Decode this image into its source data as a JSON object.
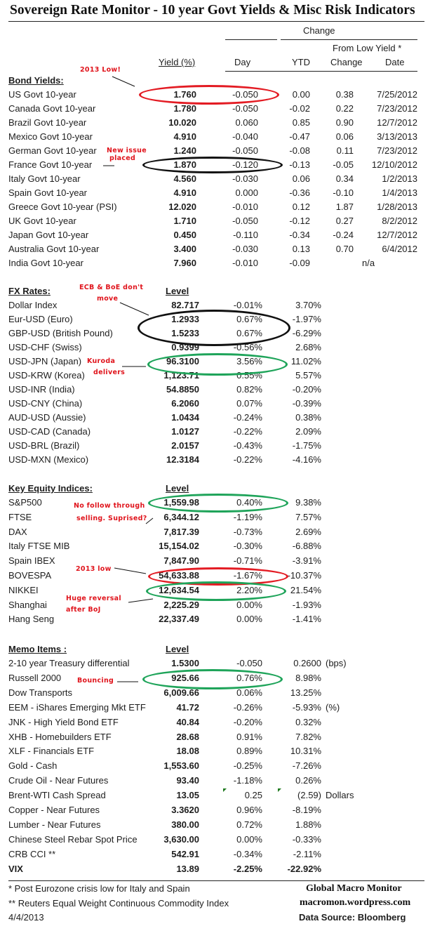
{
  "title": "Sovereign Rate Monitor - 10 year Govt Yields & Misc Risk Indicators",
  "header": {
    "change": "Change",
    "from_low_yield": "From Low Yield  *",
    "yield_pct": "Yield (%)",
    "day": "Day",
    "ytd": "YTD",
    "change_col": "Change",
    "date": "Date"
  },
  "bond_yields": {
    "heading": "Bond Yields:",
    "rows": [
      {
        "name": "US Govt 10-year",
        "yield": "1.760",
        "day": "-0.050",
        "ytd": "0.00",
        "low_change": "0.38",
        "low_date": "7/25/2012"
      },
      {
        "name": "Canada Govt 10-year",
        "yield": "1.780",
        "day": "-0.050",
        "ytd": "-0.02",
        "low_change": "0.22",
        "low_date": "7/23/2012"
      },
      {
        "name": "Brazil Govt 10-year",
        "yield": "10.020",
        "day": "0.060",
        "ytd": "0.85",
        "low_change": "0.90",
        "low_date": "12/7/2012"
      },
      {
        "name": "Mexico Govt 10-year",
        "yield": "4.910",
        "day": "-0.040",
        "ytd": "-0.47",
        "low_change": "0.06",
        "low_date": "3/13/2013"
      },
      {
        "name": "German Govt 10-year",
        "yield": "1.240",
        "day": "-0.050",
        "ytd": "-0.08",
        "low_change": "0.11",
        "low_date": "7/23/2012"
      },
      {
        "name": "France Govt 10-year",
        "yield": "1.870",
        "day": "-0.120",
        "ytd": "-0.13",
        "low_change": "-0.05",
        "low_date": "12/10/2012"
      },
      {
        "name": "Italy Govt 10-year",
        "yield": "4.560",
        "day": "-0.030",
        "ytd": "0.06",
        "low_change": "0.34",
        "low_date": "1/2/2013"
      },
      {
        "name": "Spain Govt 10-year",
        "yield": "4.910",
        "day": "0.000",
        "ytd": "-0.36",
        "low_change": "-0.10",
        "low_date": "1/4/2013"
      },
      {
        "name": "Greece Govt 10-year (PSI)",
        "yield": "12.020",
        "day": "-0.010",
        "ytd": "0.12",
        "low_change": "1.87",
        "low_date": "1/28/2013"
      },
      {
        "name": "UK Govt 10-year",
        "yield": "1.710",
        "day": "-0.050",
        "ytd": "-0.12",
        "low_change": "0.27",
        "low_date": "8/2/2012"
      },
      {
        "name": "Japan Govt 10-year",
        "yield": "0.450",
        "day": "-0.110",
        "ytd": "-0.34",
        "low_change": "-0.24",
        "low_date": "12/7/2012"
      },
      {
        "name": "Australia Govt 10-year",
        "yield": "3.400",
        "day": "-0.030",
        "ytd": "0.13",
        "low_change": "0.70",
        "low_date": "6/4/2012"
      },
      {
        "name": "India Govt 10-year",
        "yield": "7.960",
        "day": "-0.010",
        "ytd": "-0.09",
        "low_change": "",
        "low_date": "n/a"
      }
    ]
  },
  "fx_rates": {
    "heading": "FX Rates:",
    "level_label": "Level",
    "rows": [
      {
        "name": "Dollar Index",
        "level": "82.717",
        "day": "-0.01%",
        "ytd": "3.70%"
      },
      {
        "name": "Eur-USD (Euro)",
        "level": "1.2933",
        "day": "0.67%",
        "ytd": "-1.97%"
      },
      {
        "name": "GBP-USD (British Pound)",
        "level": "1.5233",
        "day": "0.67%",
        "ytd": "-6.29%"
      },
      {
        "name": "USD-CHF (Swiss)",
        "level": "0.9399",
        "day": "-0.56%",
        "ytd": "2.68%"
      },
      {
        "name": "USD-JPN (Japan)",
        "level": "96.3100",
        "day": "3.56%",
        "ytd": "11.02%"
      },
      {
        "name": "USD-KRW (Korea)",
        "level": "1,123.71",
        "day": "0.55%",
        "ytd": "5.57%"
      },
      {
        "name": "USD-INR (India)",
        "level": "54.8850",
        "day": "0.82%",
        "ytd": "-0.20%"
      },
      {
        "name": "USD-CNY (China)",
        "level": "6.2060",
        "day": "0.07%",
        "ytd": "-0.39%"
      },
      {
        "name": "AUD-USD (Aussie)",
        "level": "1.0434",
        "day": "-0.24%",
        "ytd": "0.38%"
      },
      {
        "name": "USD-CAD (Canada)",
        "level": "1.0127",
        "day": "-0.22%",
        "ytd": "2.09%"
      },
      {
        "name": "USD-BRL (Brazil)",
        "level": "2.0157",
        "day": "-0.43%",
        "ytd": "-1.75%"
      },
      {
        "name": "USD-MXN  (Mexico)",
        "level": "12.3184",
        "day": "-0.22%",
        "ytd": "-4.16%"
      }
    ]
  },
  "equity": {
    "heading": "Key Equity Indices:",
    "level_label": "Level",
    "rows": [
      {
        "name": "S&P500",
        "level": "1,559.98",
        "day": "0.40%",
        "ytd": "9.38%"
      },
      {
        "name": "FTSE",
        "level": "6,344.12",
        "day": "-1.19%",
        "ytd": "7.57%"
      },
      {
        "name": "DAX",
        "level": "7,817.39",
        "day": "-0.73%",
        "ytd": "2.69%"
      },
      {
        "name": "Italy FTSE MIB",
        "level": "15,154.02",
        "day": "-0.30%",
        "ytd": "-6.88%"
      },
      {
        "name": "Spain IBEX",
        "level": "7,847.90",
        "day": "-0.71%",
        "ytd": "-3.91%"
      },
      {
        "name": "BOVESPA",
        "level": "54,633.88",
        "day": "-1.67%",
        "ytd": "-10.37%"
      },
      {
        "name": "NIKKEI",
        "level": "12,634.54",
        "day": "2.20%",
        "ytd": "21.54%"
      },
      {
        "name": "Shanghai",
        "level": "2,225.29",
        "day": "0.00%",
        "ytd": "-1.93%"
      },
      {
        "name": "Hang Seng",
        "level": "22,337.49",
        "day": "0.00%",
        "ytd": "-1.41%"
      }
    ]
  },
  "memo": {
    "heading": "Memo Items :",
    "level_label": "Level",
    "rows": [
      {
        "name": "2-10 year Treasury differential",
        "level": "1.5300",
        "day": "-0.050",
        "ytd": "0.2600",
        "unit": "(bps)"
      },
      {
        "name": "Russell 2000",
        "level": "925.66",
        "day": "0.76%",
        "ytd": "8.98%",
        "unit": ""
      },
      {
        "name": "Dow Transports",
        "level": "6,009.66",
        "day": "0.06%",
        "ytd": "13.25%",
        "unit": ""
      },
      {
        "name": "EEM - iShares Emerging Mkt ETF",
        "level": "41.72",
        "day": "-0.26%",
        "ytd": "-5.93%",
        "unit": "(%)"
      },
      {
        "name": "JNK - High Yield Bond ETF",
        "level": "40.84",
        "day": "-0.20%",
        "ytd": "0.32%",
        "unit": ""
      },
      {
        "name": "XHB - Homebuilders ETF",
        "level": "28.68",
        "day": "0.91%",
        "ytd": "7.82%",
        "unit": ""
      },
      {
        "name": "XLF - Financials ETF",
        "level": "18.08",
        "day": "0.89%",
        "ytd": "10.31%",
        "unit": ""
      },
      {
        "name": "Gold - Cash",
        "level": "1,553.60",
        "day": "-0.25%",
        "ytd": "-7.26%",
        "unit": ""
      },
      {
        "name": "Crude Oil - Near Futures",
        "level": "93.40",
        "day": "-1.18%",
        "ytd": "0.26%",
        "unit": ""
      },
      {
        "name": "Brent-WTI Cash Spread",
        "level": "13.05",
        "day": "0.25",
        "ytd": "(2.59)",
        "unit": "Dollars"
      },
      {
        "name": "Copper - Near Futures",
        "level": "3.3620",
        "day": "0.96%",
        "ytd": "-8.19%",
        "unit": ""
      },
      {
        "name": "Lumber - Near Futures",
        "level": "380.00",
        "day": "0.72%",
        "ytd": "1.88%",
        "unit": ""
      },
      {
        "name": "Chinese Steel Rebar Spot Price",
        "level": "3,630.00",
        "day": "0.00%",
        "ytd": "-0.33%",
        "unit": ""
      },
      {
        "name": "CRB CCI **",
        "level": "542.91",
        "day": "-0.34%",
        "ytd": "-2.11%",
        "unit": ""
      },
      {
        "name": "VIX",
        "level": "13.89",
        "day": "-2.25%",
        "ytd": "-22.92%",
        "unit": ""
      }
    ]
  },
  "annotations": {
    "low_2013": "2013 Low!",
    "new_issue_1": "New issue",
    "new_issue_2": "placed",
    "ecb_1": "ECB & BoE don't",
    "ecb_2": "move",
    "kuroda_1": "Kuroda",
    "kuroda_2": "delivers",
    "follow_1": "No follow through",
    "follow_2": "selling. Suprised?",
    "bovespa_low": "2013 low",
    "reversal_1": "Huge reversal",
    "reversal_2": "after BoJ",
    "bouncing": "Bouncing"
  },
  "colors": {
    "annotation_red": "#e0141c",
    "ellipse_red": "#e31b23",
    "ellipse_green": "#1fa45a",
    "ellipse_black": "#111111"
  },
  "footer": {
    "note1": "*  Post Eurozone crisis low for Italy and Spain",
    "note2": "** Reuters Equal Weight Continuous Commodity Index",
    "date": "4/4/2013",
    "brand": "Global Macro Monitor",
    "site": "macromon.wordpress.com",
    "source": "Data Source:  Bloomberg"
  }
}
